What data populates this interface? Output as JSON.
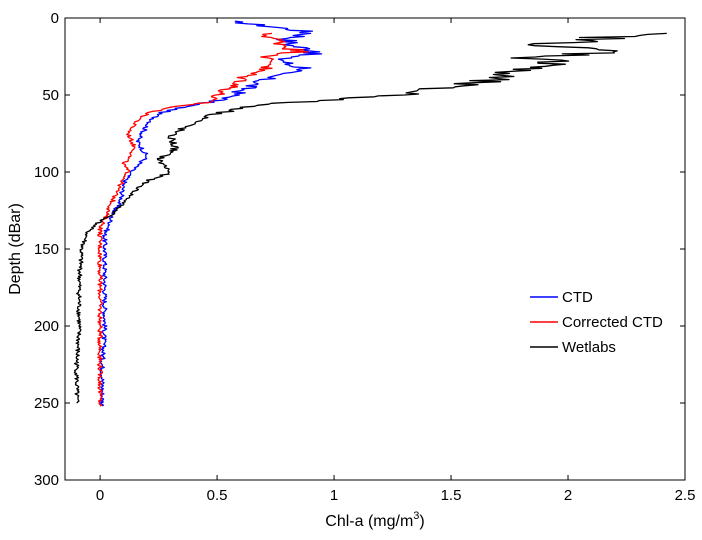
{
  "chart_data": {
    "type": "line",
    "title": "",
    "xlabel": "Chl-a (mg/m",
    "xlabel_sup": "3",
    "xlabel_close": ")",
    "ylabel": "Depth (dBar)",
    "xlim": [
      -0.15,
      2.5
    ],
    "ylim": [
      0,
      300
    ],
    "y_reversed": true,
    "x_ticks": [
      0,
      0.5,
      1,
      1.5,
      2,
      2.5
    ],
    "x_tick_labels": [
      "0",
      "0.5",
      "1",
      "1.5",
      "2",
      "2.5"
    ],
    "y_ticks": [
      0,
      50,
      100,
      150,
      200,
      250,
      300
    ],
    "y_tick_labels": [
      "0",
      "50",
      "100",
      "150",
      "200",
      "250",
      "300"
    ],
    "grid": false,
    "legend_position": "right",
    "legend": [
      "CTD",
      "Corrected CTD",
      "Wetlabs"
    ],
    "series": [
      {
        "name": "CTD",
        "color": "#0000ff",
        "points": [
          [
            0.55,
            2
          ],
          [
            0.7,
            5
          ],
          [
            0.85,
            8
          ],
          [
            0.9,
            10
          ],
          [
            0.8,
            14
          ],
          [
            0.82,
            18
          ],
          [
            0.95,
            22
          ],
          [
            0.78,
            26
          ],
          [
            0.8,
            30
          ],
          [
            0.9,
            33
          ],
          [
            0.75,
            36
          ],
          [
            0.7,
            40
          ],
          [
            0.62,
            46
          ],
          [
            0.55,
            52
          ],
          [
            0.35,
            58
          ],
          [
            0.25,
            62
          ],
          [
            0.2,
            70
          ],
          [
            0.16,
            80
          ],
          [
            0.2,
            90
          ],
          [
            0.13,
            100
          ],
          [
            0.1,
            108
          ],
          [
            0.09,
            118
          ],
          [
            0.05,
            128
          ],
          [
            0.04,
            135
          ],
          [
            0.02,
            140
          ],
          [
            0.02,
            150
          ],
          [
            0.02,
            175
          ],
          [
            0.02,
            200
          ],
          [
            0.01,
            225
          ],
          [
            0.01,
            252
          ]
        ]
      },
      {
        "name": "Corrected CTD",
        "color": "#ff0000",
        "points": [
          [
            0.7,
            10
          ],
          [
            0.75,
            14
          ],
          [
            0.8,
            18
          ],
          [
            0.85,
            22
          ],
          [
            0.7,
            26
          ],
          [
            0.75,
            30
          ],
          [
            0.68,
            34
          ],
          [
            0.62,
            38
          ],
          [
            0.6,
            42
          ],
          [
            0.5,
            50
          ],
          [
            0.45,
            55
          ],
          [
            0.3,
            58
          ],
          [
            0.2,
            62
          ],
          [
            0.15,
            68
          ],
          [
            0.12,
            75
          ],
          [
            0.15,
            85
          ],
          [
            0.1,
            95
          ],
          [
            0.12,
            100
          ],
          [
            0.08,
            110
          ],
          [
            0.05,
            120
          ],
          [
            0.02,
            130
          ],
          [
            0.0,
            138
          ],
          [
            0.0,
            150
          ],
          [
            0.0,
            175
          ],
          [
            0.0,
            200
          ],
          [
            0.0,
            225
          ],
          [
            0.0,
            252
          ]
        ]
      },
      {
        "name": "Wetlabs",
        "color": "#000000",
        "points": [
          [
            2.3,
            10
          ],
          [
            2.1,
            14
          ],
          [
            1.9,
            18
          ],
          [
            2.2,
            22
          ],
          [
            1.85,
            26
          ],
          [
            2.0,
            30
          ],
          [
            1.75,
            34
          ],
          [
            1.7,
            38
          ],
          [
            1.6,
            42
          ],
          [
            1.4,
            46
          ],
          [
            1.3,
            50
          ],
          [
            1.0,
            53
          ],
          [
            0.7,
            56
          ],
          [
            0.5,
            62
          ],
          [
            0.4,
            68
          ],
          [
            0.3,
            76
          ],
          [
            0.32,
            85
          ],
          [
            0.25,
            92
          ],
          [
            0.3,
            100
          ],
          [
            0.2,
            106
          ],
          [
            0.15,
            112
          ],
          [
            0.1,
            120
          ],
          [
            0.05,
            128
          ],
          [
            0.0,
            132
          ],
          [
            -0.05,
            138
          ],
          [
            -0.08,
            150
          ],
          [
            -0.09,
            175
          ],
          [
            -0.09,
            200
          ],
          [
            -0.1,
            225
          ],
          [
            -0.1,
            250
          ]
        ]
      }
    ]
  }
}
